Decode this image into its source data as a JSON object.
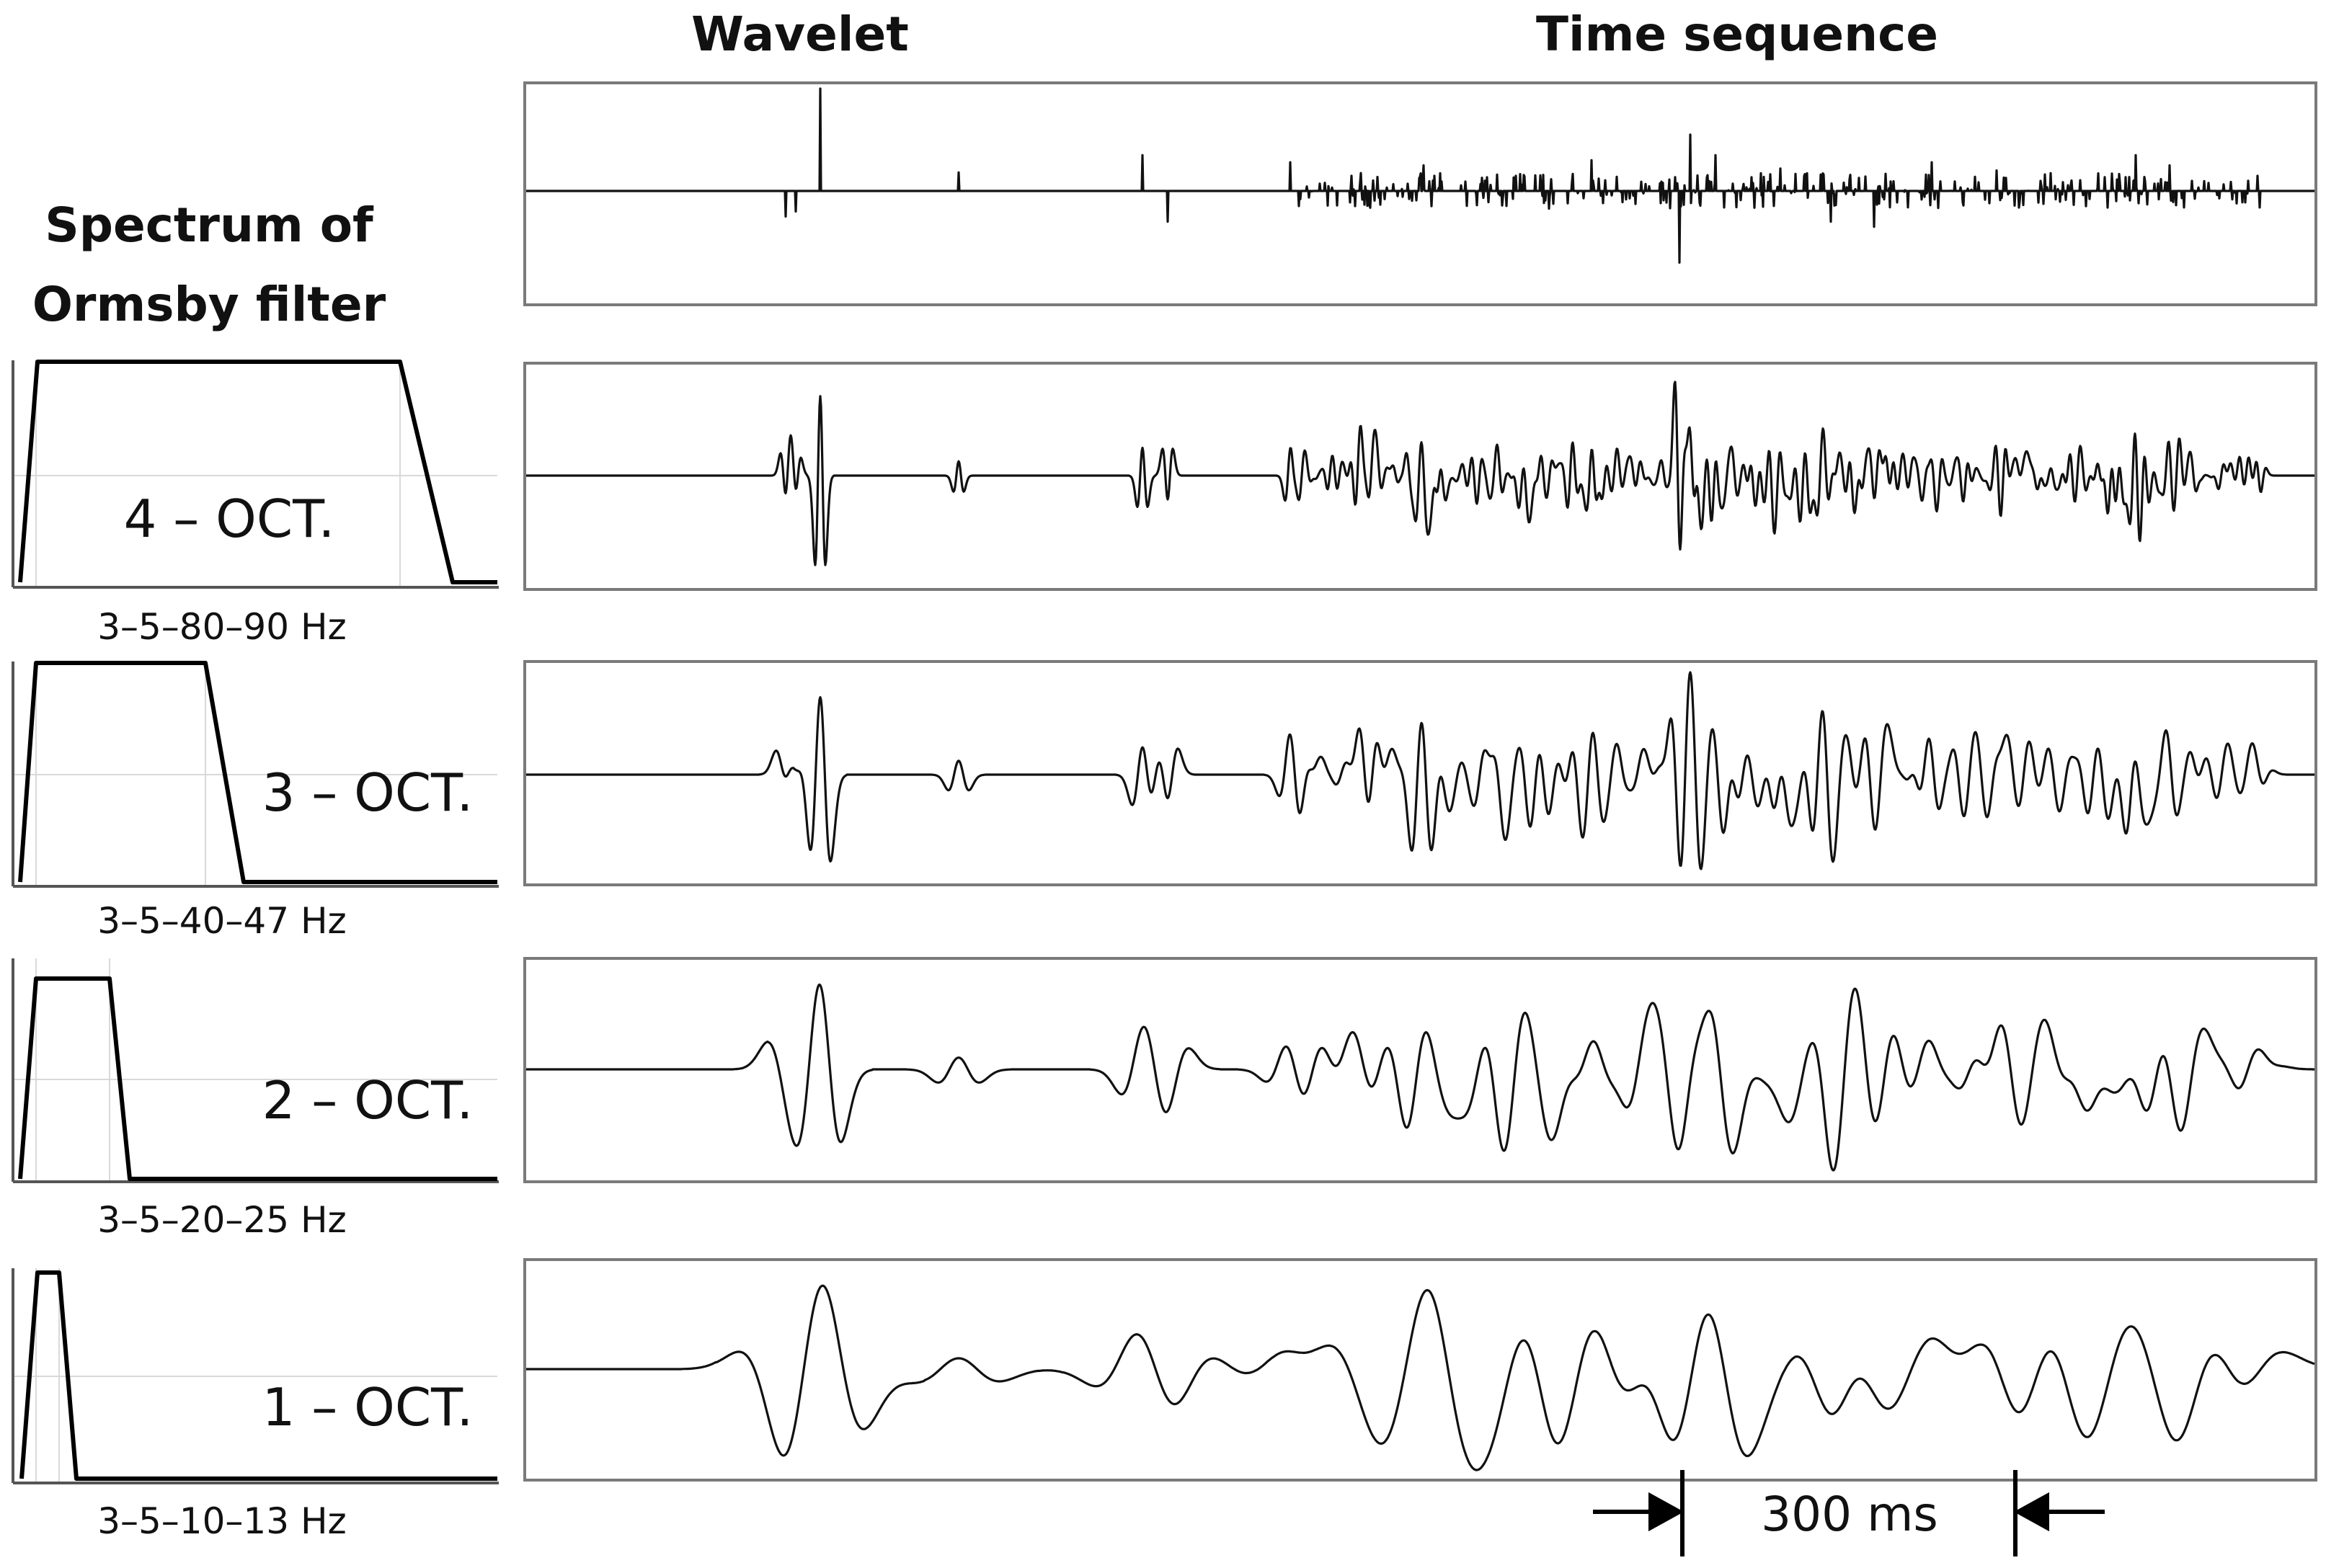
{
  "headers": {
    "wavelet": "Wavelet",
    "time_sequence": "Time sequence",
    "spectrum_line1": "Spectrum of",
    "spectrum_line2": "Ormsby filter"
  },
  "rows": [
    {
      "id": "reflectivity",
      "octave_label": "",
      "freq_label": "",
      "corners_hz": null
    },
    {
      "id": "4-oct",
      "octave_label": "4 – OCT.",
      "freq_label": "3–5–80–90 Hz",
      "corners_hz": [
        3,
        5,
        80,
        90
      ],
      "smooth": 1
    },
    {
      "id": "3-oct",
      "octave_label": "3 – OCT.",
      "freq_label": "3–5–40–47 Hz",
      "corners_hz": [
        3,
        5,
        40,
        47
      ],
      "smooth": 2
    },
    {
      "id": "2-oct",
      "octave_label": "2 – OCT.",
      "freq_label": "3–5–20–25 Hz",
      "corners_hz": [
        3,
        5,
        20,
        25
      ],
      "smooth": 4
    },
    {
      "id": "1-oct",
      "octave_label": "1 – OCT.",
      "freq_label": "3–5–10–13 Hz",
      "corners_hz": [
        3,
        5,
        10,
        13
      ],
      "smooth": 8
    }
  ],
  "scale_bar": {
    "label": "300 ms"
  },
  "colors": {
    "trace": "#111111",
    "frame": "#7a7a7a",
    "grid": "#d9d9d9"
  }
}
